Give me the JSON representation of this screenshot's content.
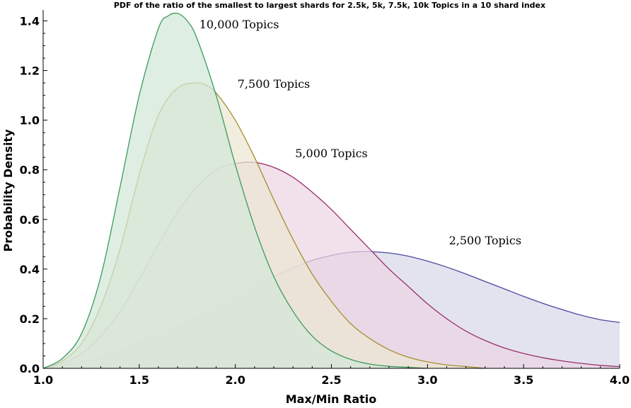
{
  "chart_data": {
    "type": "area",
    "title": "PDF of the ratio of the smallest to largest shards for 2.5k, 5k, 7.5k, 10k Topics in a 10 shard index",
    "xlabel": "Max/Min Ratio",
    "ylabel": "Probability Density",
    "xlim": [
      1.0,
      4.0
    ],
    "ylim": [
      0.0,
      1.43
    ],
    "x_ticks": [
      "1.0",
      "1.5",
      "2.0",
      "2.5",
      "3.0",
      "3.5",
      "4.0"
    ],
    "y_ticks": [
      "0.0",
      "0.2",
      "0.4",
      "0.6",
      "0.8",
      "1.0",
      "1.2",
      "1.4"
    ],
    "grid": false,
    "legend": "none (curves labelled directly)",
    "series": [
      {
        "name": "2,500 Topics",
        "stroke": "#4a4a9e",
        "fill": "#d8d8ea",
        "x": [
          1.0,
          1.1,
          1.2,
          1.3,
          1.4,
          1.5,
          1.6,
          1.7,
          1.8,
          1.9,
          2.0,
          2.1,
          2.2,
          2.3,
          2.4,
          2.5,
          2.6,
          2.7,
          2.8,
          2.9,
          3.0,
          3.1,
          3.2,
          3.3,
          3.4,
          3.5,
          3.6,
          3.7,
          3.8,
          3.9,
          4.0
        ],
        "y": [
          0.0,
          0.012,
          0.025,
          0.045,
          0.07,
          0.1,
          0.135,
          0.17,
          0.21,
          0.25,
          0.29,
          0.33,
          0.37,
          0.405,
          0.435,
          0.455,
          0.468,
          0.47,
          0.465,
          0.452,
          0.432,
          0.408,
          0.38,
          0.35,
          0.32,
          0.29,
          0.262,
          0.237,
          0.214,
          0.196,
          0.185
        ]
      },
      {
        "name": "5,000 Topics",
        "stroke": "#9b2f6b",
        "fill": "#ecd6e3",
        "x": [
          1.0,
          1.1,
          1.2,
          1.3,
          1.4,
          1.5,
          1.6,
          1.7,
          1.8,
          1.9,
          2.0,
          2.1,
          2.2,
          2.3,
          2.4,
          2.5,
          2.6,
          2.7,
          2.8,
          2.9,
          3.0,
          3.1,
          3.2,
          3.3,
          3.4,
          3.5,
          3.6,
          3.7,
          3.8,
          3.9,
          4.0
        ],
        "y": [
          0.0,
          0.02,
          0.06,
          0.13,
          0.23,
          0.36,
          0.5,
          0.63,
          0.73,
          0.8,
          0.825,
          0.83,
          0.81,
          0.77,
          0.71,
          0.64,
          0.56,
          0.48,
          0.4,
          0.33,
          0.26,
          0.2,
          0.15,
          0.112,
          0.082,
          0.06,
          0.043,
          0.03,
          0.02,
          0.012,
          0.007
        ]
      },
      {
        "name": "7,500 Topics",
        "stroke": "#a68d2c",
        "fill": "#ebe6d3",
        "x": [
          1.0,
          1.1,
          1.2,
          1.3,
          1.4,
          1.5,
          1.6,
          1.7,
          1.8,
          1.85,
          1.9,
          2.0,
          2.1,
          2.2,
          2.3,
          2.4,
          2.5,
          2.6,
          2.7,
          2.8,
          2.9,
          3.0,
          3.1,
          3.2,
          3.3
        ],
        "y": [
          0.0,
          0.03,
          0.1,
          0.25,
          0.48,
          0.78,
          1.02,
          1.13,
          1.15,
          1.14,
          1.11,
          1.0,
          0.85,
          0.68,
          0.52,
          0.38,
          0.27,
          0.18,
          0.12,
          0.075,
          0.045,
          0.026,
          0.014,
          0.007,
          0.0
        ]
      },
      {
        "name": "10,000 Topics",
        "stroke": "#3c9a5c",
        "fill": "#d2e8d8",
        "x": [
          1.0,
          1.1,
          1.2,
          1.3,
          1.4,
          1.5,
          1.6,
          1.65,
          1.7,
          1.75,
          1.8,
          1.9,
          2.0,
          2.1,
          2.2,
          2.3,
          2.4,
          2.5,
          2.6,
          2.7,
          2.8,
          2.9,
          3.0
        ],
        "y": [
          0.0,
          0.04,
          0.14,
          0.37,
          0.73,
          1.1,
          1.37,
          1.42,
          1.43,
          1.4,
          1.33,
          1.1,
          0.82,
          0.57,
          0.37,
          0.23,
          0.13,
          0.07,
          0.036,
          0.017,
          0.008,
          0.004,
          0.0
        ]
      }
    ]
  }
}
